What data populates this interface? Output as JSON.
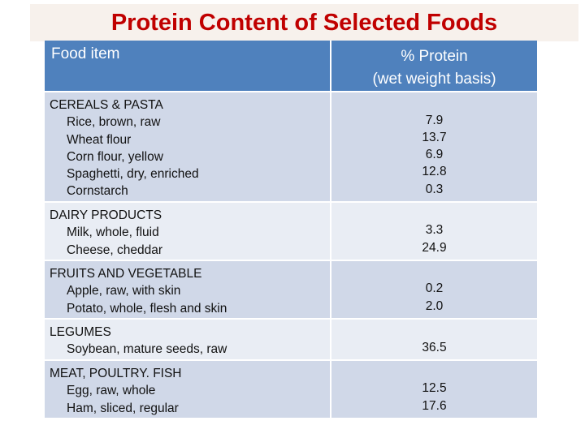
{
  "title": "Protein Content of Selected Foods",
  "header": {
    "col1": "Food item",
    "col2_line1": "% Protein",
    "col2_line2": "(wet weight basis)"
  },
  "groups": [
    {
      "category": "CEREALS & PASTA",
      "items": [
        "Rice, brown, raw",
        "Wheat flour",
        "Corn flour, yellow",
        "Spaghetti, dry, enriched",
        "Cornstarch"
      ],
      "values": [
        "7.9",
        "13.7",
        "6.9",
        "12.8",
        "0.3"
      ]
    },
    {
      "category": "DAIRY PRODUCTS",
      "items": [
        "Milk, whole, fluid",
        "Cheese, cheddar"
      ],
      "values": [
        "3.3",
        "24.9"
      ]
    },
    {
      "category": "FRUITS AND VEGETABLE",
      "items": [
        "Apple, raw, with skin",
        "Potato, whole, flesh and skin"
      ],
      "values": [
        "0.2",
        "2.0"
      ]
    },
    {
      "category": "LEGUMES",
      "items": [
        "Soybean, mature seeds, raw"
      ],
      "values": [
        "36.5"
      ]
    },
    {
      "category": "MEAT, POULTRY. FISH",
      "items": [
        "Egg, raw, whole",
        "Ham, sliced, regular"
      ],
      "values": [
        "12.5",
        "17.6"
      ]
    }
  ],
  "colors": {
    "title": "#c00000",
    "header_bg": "#4f81bd",
    "row_dark": "#d0d8e8",
    "row_light": "#e9edf4"
  }
}
